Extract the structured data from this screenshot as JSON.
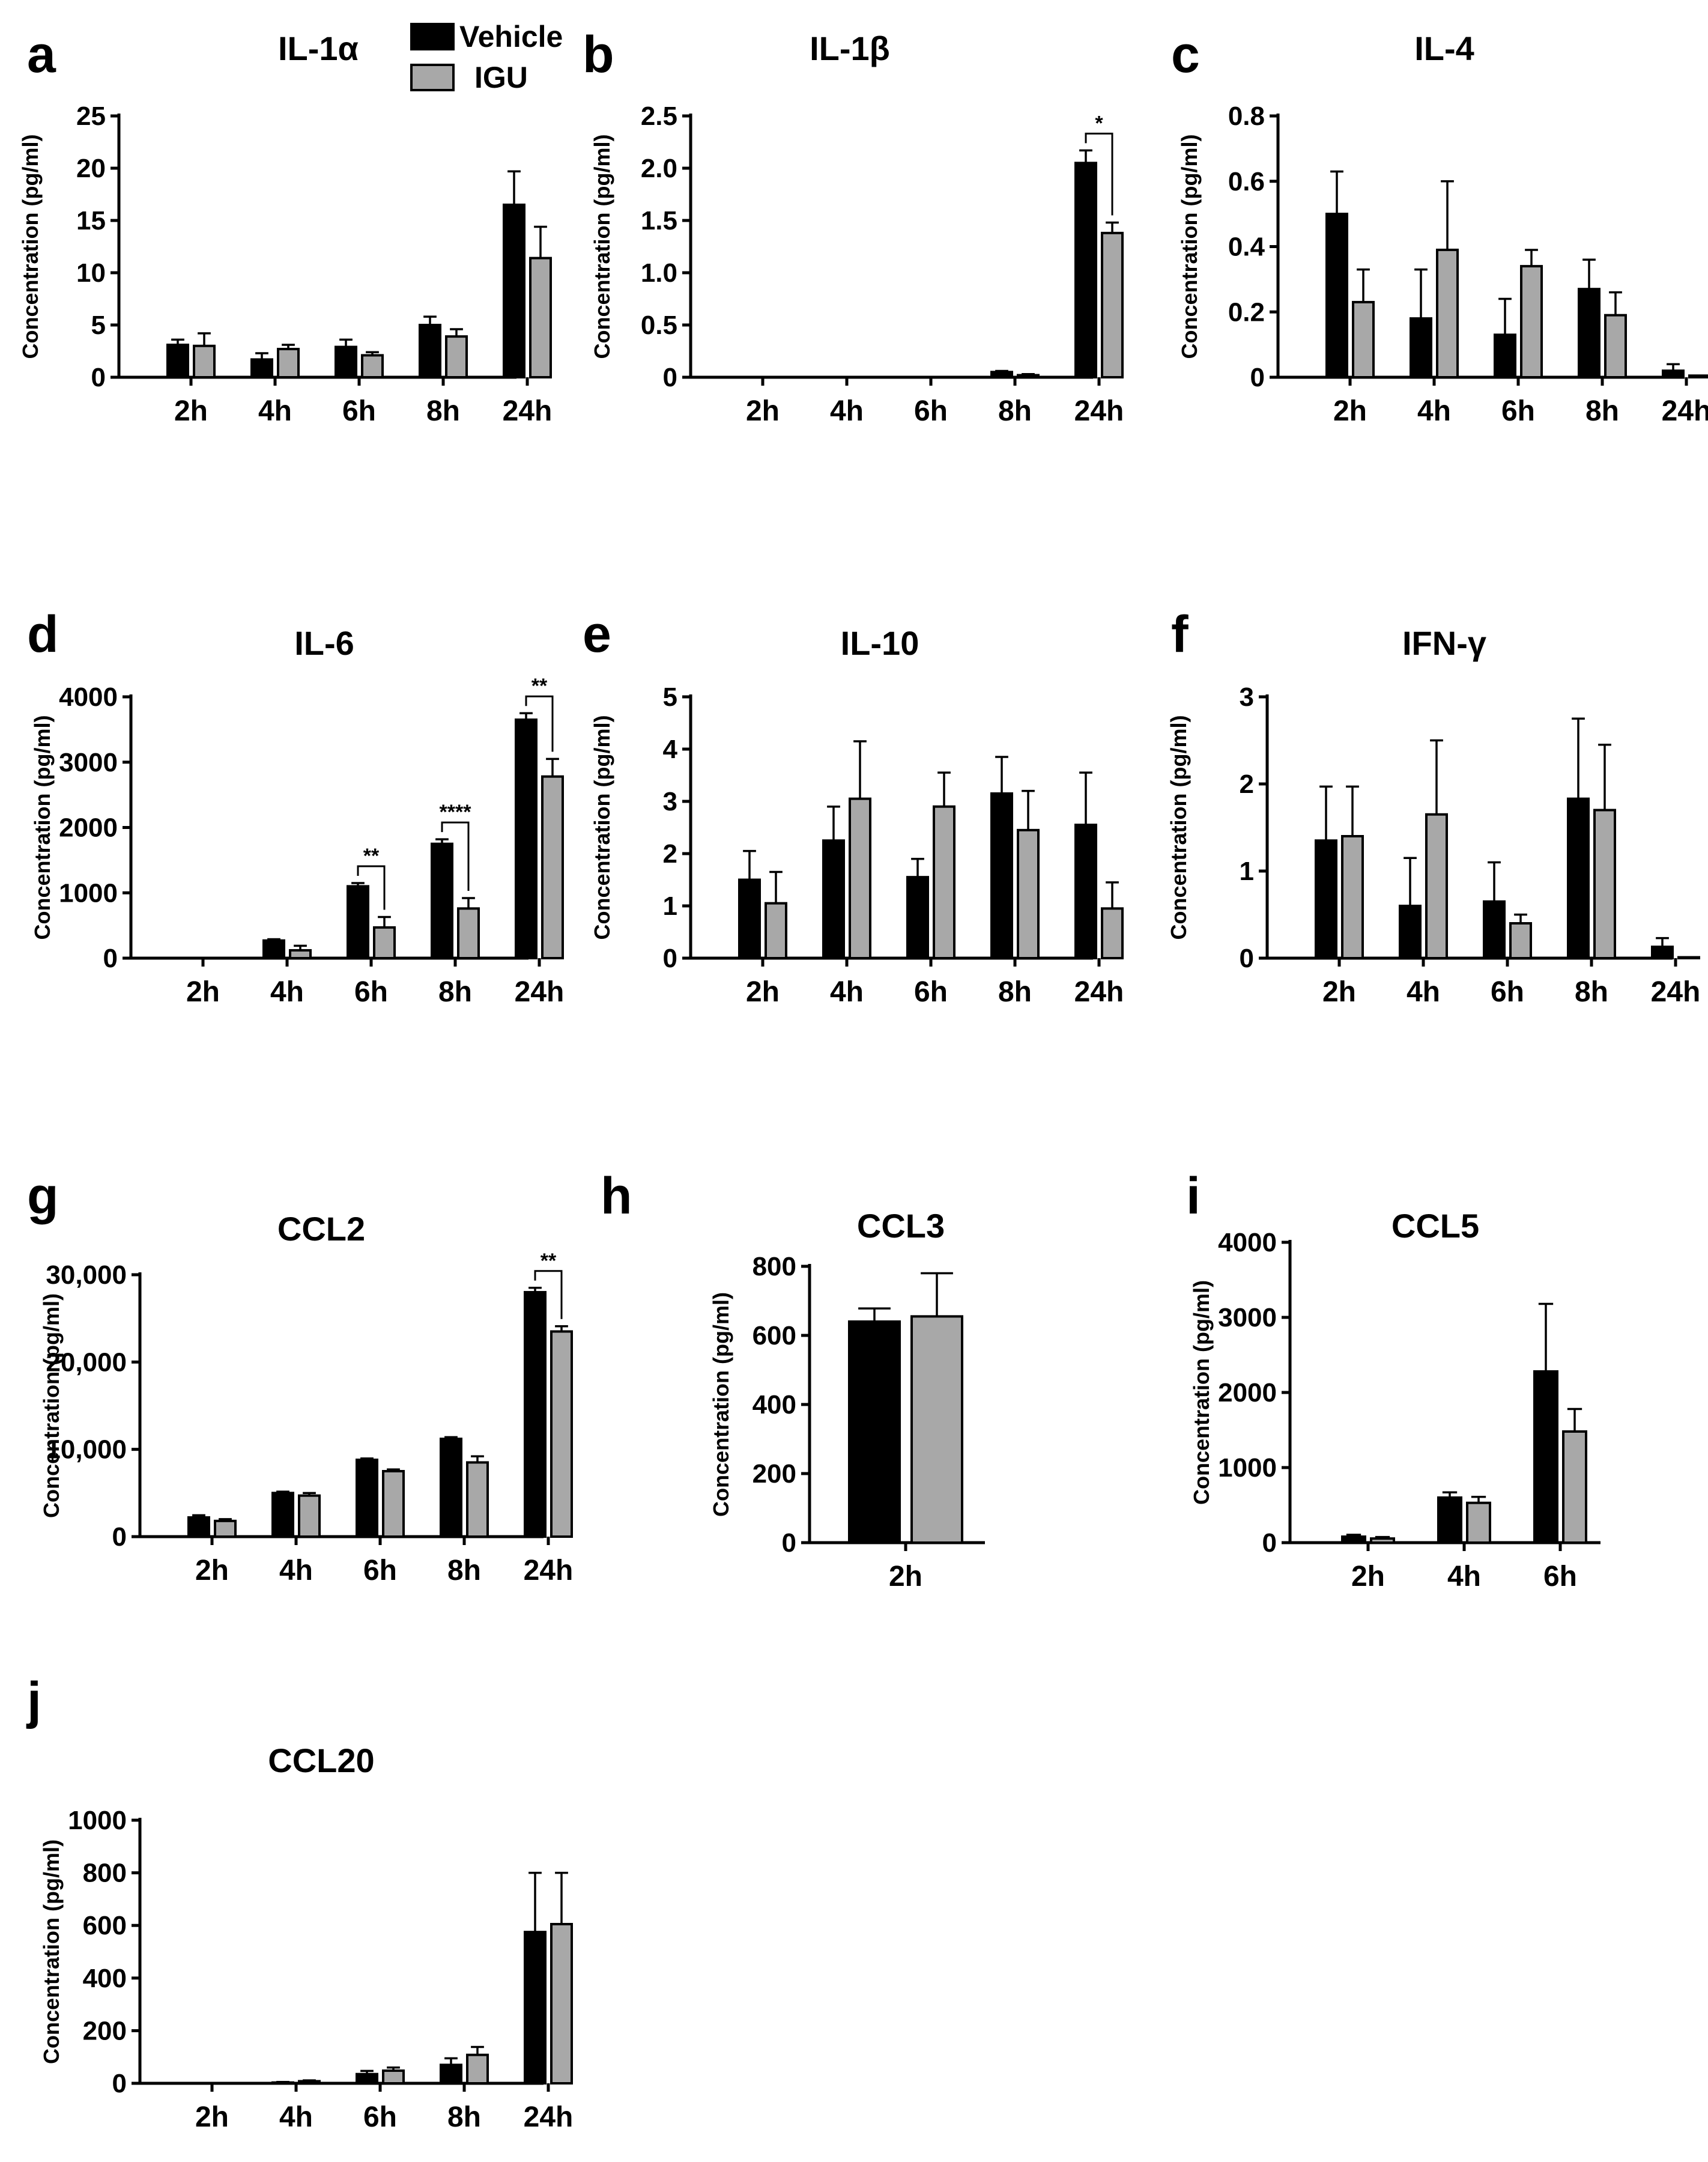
{
  "legend": {
    "items": [
      {
        "label": "Vehicle",
        "color": "#000000"
      },
      {
        "label": "IGU",
        "color": "#a8a8a8"
      }
    ]
  },
  "chart_data": [
    {
      "id": "a",
      "type": "bar",
      "title": "IL-1α",
      "ylabel": "Concentration (pg/ml)",
      "categories": [
        "2h",
        "4h",
        "6h",
        "8h",
        "24h"
      ],
      "ylim": [
        0,
        25
      ],
      "yticks": [
        0,
        5,
        10,
        15,
        20,
        25
      ],
      "ytick_labels": [
        "0",
        "5",
        "10",
        "15",
        "20",
        "25"
      ],
      "series": [
        {
          "name": "Vehicle",
          "values": [
            3.1,
            1.7,
            2.9,
            5.0,
            16.5
          ],
          "errors": [
            0.5,
            0.6,
            0.7,
            0.8,
            3.2
          ]
        },
        {
          "name": "IGU",
          "values": [
            3.0,
            2.7,
            2.1,
            3.9,
            11.4
          ],
          "errors": [
            1.2,
            0.4,
            0.3,
            0.7,
            3.0
          ]
        }
      ],
      "significance": []
    },
    {
      "id": "b",
      "type": "bar",
      "title": "IL-1β",
      "ylabel": "Concentration (pg/ml)",
      "categories": [
        "2h",
        "4h",
        "6h",
        "8h",
        "24h"
      ],
      "ylim": [
        0,
        2.5
      ],
      "yticks": [
        0,
        0.5,
        1.0,
        1.5,
        2.0,
        2.5
      ],
      "ytick_labels": [
        "0",
        "0.5",
        "1.0",
        "1.5",
        "2.0",
        "2.5"
      ],
      "series": [
        {
          "name": "Vehicle",
          "values": [
            0,
            0,
            0,
            0.05,
            2.05
          ],
          "errors": [
            0,
            0,
            0,
            0.01,
            0.12
          ]
        },
        {
          "name": "IGU",
          "values": [
            0,
            0,
            0,
            0.02,
            1.38
          ],
          "errors": [
            0,
            0,
            0,
            0.01,
            0.1
          ]
        }
      ],
      "significance": [
        {
          "category": "24h",
          "label": "*"
        }
      ]
    },
    {
      "id": "c",
      "type": "bar",
      "title": "IL-4",
      "ylabel": "Concentration (pg/ml)",
      "categories": [
        "2h",
        "4h",
        "6h",
        "8h",
        "24h"
      ],
      "ylim": [
        0,
        0.8
      ],
      "yticks": [
        0,
        0.2,
        0.4,
        0.6,
        0.8
      ],
      "ytick_labels": [
        "0",
        "0.2",
        "0.4",
        "0.6",
        "0.8"
      ],
      "series": [
        {
          "name": "Vehicle",
          "values": [
            0.5,
            0.18,
            0.13,
            0.27,
            0.02
          ],
          "errors": [
            0.13,
            0.15,
            0.11,
            0.09,
            0.02
          ]
        },
        {
          "name": "IGU",
          "values": [
            0.23,
            0.39,
            0.34,
            0.19,
            0.005
          ],
          "errors": [
            0.1,
            0.21,
            0.05,
            0.07,
            0.0
          ]
        }
      ],
      "significance": []
    },
    {
      "id": "d",
      "type": "bar",
      "title": "IL-6",
      "ylabel": "Concentration (pg/ml)",
      "categories": [
        "2h",
        "4h",
        "6h",
        "8h",
        "24h"
      ],
      "ylim": [
        0,
        4000
      ],
      "yticks": [
        0,
        1000,
        2000,
        3000,
        4000
      ],
      "ytick_labels": [
        "0",
        "1000",
        "2000",
        "3000",
        "4000"
      ],
      "series": [
        {
          "name": "Vehicle",
          "values": [
            0,
            270,
            1100,
            1750,
            3650
          ],
          "errors": [
            0,
            20,
            50,
            70,
            100
          ]
        },
        {
          "name": "IGU",
          "values": [
            0,
            120,
            470,
            760,
            2780
          ],
          "errors": [
            0,
            70,
            160,
            160,
            270
          ]
        }
      ],
      "significance": [
        {
          "category": "6h",
          "label": "**"
        },
        {
          "category": "8h",
          "label": "****"
        },
        {
          "category": "24h",
          "label": "**"
        }
      ]
    },
    {
      "id": "e",
      "type": "bar",
      "title": "IL-10",
      "ylabel": "Concentration (pg/ml)",
      "categories": [
        "2h",
        "4h",
        "6h",
        "8h",
        "24h"
      ],
      "ylim": [
        0,
        5
      ],
      "yticks": [
        0,
        1,
        2,
        3,
        4,
        5
      ],
      "ytick_labels": [
        "0",
        "1",
        "2",
        "3",
        "4",
        "5"
      ],
      "series": [
        {
          "name": "Vehicle",
          "values": [
            1.5,
            2.25,
            1.55,
            3.15,
            2.55
          ],
          "errors": [
            0.55,
            0.65,
            0.35,
            0.7,
            1.0
          ]
        },
        {
          "name": "IGU",
          "values": [
            1.05,
            3.05,
            2.9,
            2.45,
            0.95
          ],
          "errors": [
            0.6,
            1.1,
            0.65,
            0.75,
            0.5
          ]
        }
      ],
      "significance": []
    },
    {
      "id": "f",
      "type": "bar",
      "title": "IFN-γ",
      "ylabel": "Concentration (pg/ml)",
      "categories": [
        "2h",
        "4h",
        "6h",
        "8h",
        "24h"
      ],
      "ylim": [
        0,
        3
      ],
      "yticks": [
        0,
        1,
        2,
        3
      ],
      "ytick_labels": [
        "0",
        "1",
        "2",
        "3"
      ],
      "series": [
        {
          "name": "Vehicle",
          "values": [
            1.35,
            0.6,
            0.65,
            1.83,
            0.13
          ],
          "errors": [
            0.62,
            0.55,
            0.45,
            0.92,
            0.1
          ]
        },
        {
          "name": "IGU",
          "values": [
            1.4,
            1.65,
            0.4,
            1.7,
            0.01
          ],
          "errors": [
            0.57,
            0.85,
            0.1,
            0.75,
            0.0
          ]
        }
      ],
      "significance": []
    },
    {
      "id": "g",
      "type": "bar",
      "title": "CCL2",
      "ylabel": "Concentration (pg/ml)",
      "categories": [
        "2h",
        "4h",
        "6h",
        "8h",
        "24h"
      ],
      "ylim": [
        0,
        30000
      ],
      "yticks": [
        0,
        10000,
        20000,
        30000
      ],
      "ytick_labels": [
        "0",
        "10,000",
        "20,000",
        "30,000"
      ],
      "series": [
        {
          "name": "Vehicle",
          "values": [
            2200,
            5000,
            8800,
            11200,
            28000
          ],
          "errors": [
            250,
            150,
            150,
            200,
            500
          ]
        },
        {
          "name": "IGU",
          "values": [
            1800,
            4700,
            7500,
            8500,
            23500
          ],
          "errors": [
            200,
            300,
            200,
            700,
            600
          ]
        }
      ],
      "significance": [
        {
          "category": "24h",
          "label": "**"
        }
      ]
    },
    {
      "id": "h",
      "type": "bar",
      "title": "CCL3",
      "ylabel": "Concentration (pg/ml)",
      "categories": [
        "2h"
      ],
      "ylim": [
        0,
        800
      ],
      "yticks": [
        0,
        200,
        400,
        600,
        800
      ],
      "ytick_labels": [
        "0",
        "200",
        "400",
        "600",
        "800"
      ],
      "series": [
        {
          "name": "Vehicle",
          "values": [
            640
          ],
          "errors": [
            38
          ]
        },
        {
          "name": "IGU",
          "values": [
            655
          ],
          "errors": [
            125
          ]
        }
      ],
      "significance": []
    },
    {
      "id": "i",
      "type": "bar",
      "title": "CCL5",
      "ylabel": "Concentration (pg/ml)",
      "categories": [
        "2h",
        "4h",
        "6h"
      ],
      "ylim": [
        0,
        4000
      ],
      "yticks": [
        0,
        1000,
        2000,
        3000,
        4000
      ],
      "ytick_labels": [
        "0",
        "1000",
        "2000",
        "3000",
        "4000"
      ],
      "series": [
        {
          "name": "Vehicle",
          "values": [
            80,
            600,
            2280
          ],
          "errors": [
            25,
            70,
            900
          ]
        },
        {
          "name": "IGU",
          "values": [
            55,
            530,
            1480
          ],
          "errors": [
            20,
            80,
            300
          ]
        }
      ],
      "significance": []
    },
    {
      "id": "j",
      "type": "bar",
      "title": "CCL20",
      "ylabel": "Concentration (pg/ml)",
      "categories": [
        "2h",
        "4h",
        "6h",
        "8h",
        "24h"
      ],
      "ylim": [
        0,
        1000
      ],
      "yticks": [
        0,
        200,
        400,
        600,
        800,
        1000
      ],
      "ytick_labels": [
        "0",
        "200",
        "400",
        "600",
        "800",
        "1000"
      ],
      "series": [
        {
          "name": "Vehicle",
          "values": [
            0,
            3,
            35,
            70,
            575
          ],
          "errors": [
            0,
            2,
            12,
            25,
            225
          ]
        },
        {
          "name": "IGU",
          "values": [
            0,
            8,
            48,
            108,
            605
          ],
          "errors": [
            0,
            3,
            12,
            30,
            195
          ]
        }
      ],
      "significance": []
    }
  ]
}
